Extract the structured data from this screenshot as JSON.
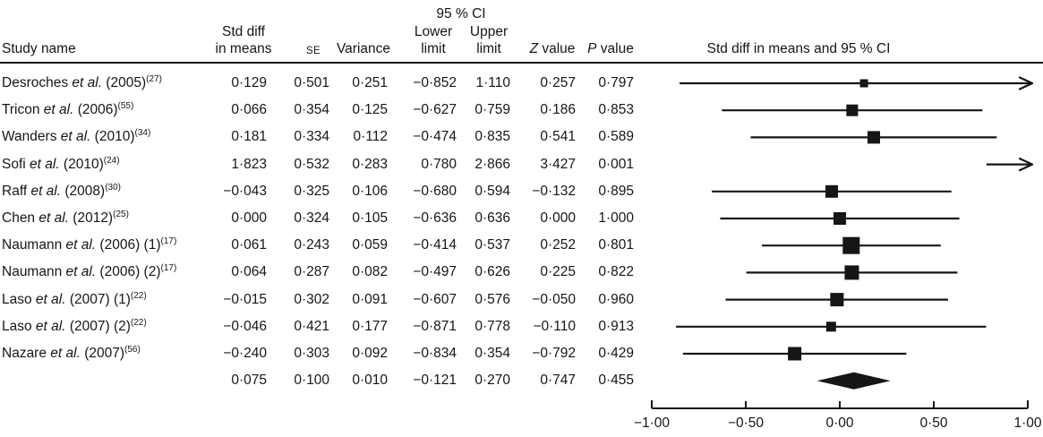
{
  "figure": {
    "background": "#ffffff",
    "ink_color": "#161616"
  },
  "header": {
    "study_name": "Study name",
    "ci_group": "95 % CI",
    "mean_line1": "Std diff",
    "mean_line2": "in means",
    "se": "SE",
    "variance": "Variance",
    "lower_line1": "Lower",
    "lower_line2": "limit",
    "upper_line1": "Upper",
    "upper_line2": "limit",
    "z_italic": "Z",
    "z_rest": " value",
    "p_italic": "P",
    "p_rest": " value",
    "plot_title": "Std diff in means and 95 % CI"
  },
  "chart_data": {
    "type": "forest",
    "title": "Std diff in means and 95 % CI",
    "x_axis": {
      "min": -1.0,
      "max": 1.0,
      "ticks": [
        -1.0,
        -0.5,
        0.0,
        0.5,
        1.0
      ],
      "tick_labels": [
        "−1·00",
        "−0·50",
        "0·00",
        "0·50",
        "1·00"
      ]
    },
    "columns": [
      "Std diff in means",
      "SE",
      "Variance",
      "Lower limit",
      "Upper limit",
      "Z value",
      "P value"
    ],
    "studies": [
      {
        "author": "Desroches",
        "etal": "et al.",
        "suffix": " (2005)",
        "ref": "(27)",
        "mean": 0.129,
        "se": 0.501,
        "variance": 0.251,
        "lower": -0.852,
        "upper": 1.11,
        "z": 0.257,
        "p": 0.797
      },
      {
        "author": "Tricon",
        "etal": "et al.",
        "suffix": " (2006)",
        "ref": "(55)",
        "mean": 0.066,
        "se": 0.354,
        "variance": 0.125,
        "lower": -0.627,
        "upper": 0.759,
        "z": 0.186,
        "p": 0.853
      },
      {
        "author": "Wanders",
        "etal": "et al.",
        "suffix": " (2010)",
        "ref": "(34)",
        "mean": 0.181,
        "se": 0.334,
        "variance": 0.112,
        "lower": -0.474,
        "upper": 0.835,
        "z": 0.541,
        "p": 0.589
      },
      {
        "author": "Sofi",
        "etal": "et al.",
        "suffix": " (2010)",
        "ref": "(24)",
        "mean": 1.823,
        "se": 0.532,
        "variance": 0.283,
        "lower": 0.78,
        "upper": 2.866,
        "z": 3.427,
        "p": 0.001
      },
      {
        "author": "Raff",
        "etal": "et al.",
        "suffix": " (2008)",
        "ref": "(30)",
        "mean": -0.043,
        "se": 0.325,
        "variance": 0.106,
        "lower": -0.68,
        "upper": 0.594,
        "z": -0.132,
        "p": 0.895
      },
      {
        "author": "Chen",
        "etal": "et al.",
        "suffix": " (2012)",
        "ref": "(25)",
        "mean": 0.0,
        "se": 0.324,
        "variance": 0.105,
        "lower": -0.636,
        "upper": 0.636,
        "z": 0.0,
        "p": 1.0
      },
      {
        "author": "Naumann",
        "etal": "et al.",
        "suffix": " (2006) (1)",
        "ref": "(17)",
        "mean": 0.061,
        "se": 0.243,
        "variance": 0.059,
        "lower": -0.414,
        "upper": 0.537,
        "z": 0.252,
        "p": 0.801
      },
      {
        "author": "Naumann",
        "etal": "et al.",
        "suffix": " (2006) (2)",
        "ref": "(17)",
        "mean": 0.064,
        "se": 0.287,
        "variance": 0.082,
        "lower": -0.497,
        "upper": 0.626,
        "z": 0.225,
        "p": 0.822
      },
      {
        "author": "Laso",
        "etal": "et al.",
        "suffix": " (2007) (1)",
        "ref": "(22)",
        "mean": -0.015,
        "se": 0.302,
        "variance": 0.091,
        "lower": -0.607,
        "upper": 0.576,
        "z": -0.05,
        "p": 0.96
      },
      {
        "author": "Laso",
        "etal": "et al.",
        "suffix": " (2007) (2)",
        "ref": "(22)",
        "mean": -0.046,
        "se": 0.421,
        "variance": 0.177,
        "lower": -0.871,
        "upper": 0.778,
        "z": -0.11,
        "p": 0.913
      },
      {
        "author": "Nazare",
        "etal": "et al.",
        "suffix": " (2007)",
        "ref": "(56)",
        "mean": -0.24,
        "se": 0.303,
        "variance": 0.092,
        "lower": -0.834,
        "upper": 0.354,
        "z": -0.792,
        "p": 0.429
      }
    ],
    "summary": {
      "mean": 0.075,
      "se": 0.1,
      "variance": 0.01,
      "lower": -0.121,
      "upper": 0.27,
      "z": 0.747,
      "p": 0.455
    }
  }
}
